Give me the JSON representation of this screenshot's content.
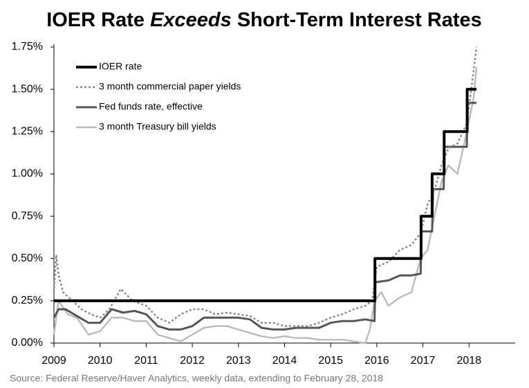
{
  "chart_data": {
    "type": "line",
    "title": [
      "IOER Rate ",
      "Exceeds",
      " Short-Term Interest Rates"
    ],
    "source": "Source: Federal Reserve/Haver Analytics, weekly data, extending to February 28, 2018",
    "xlim": [
      2009,
      2019
    ],
    "xticks": [
      2009,
      2010,
      2011,
      2012,
      2013,
      2014,
      2015,
      2016,
      2017,
      2018
    ],
    "ylim": [
      0,
      1.75
    ],
    "yticks": [
      {
        "value": 0,
        "label": "0.00%"
      },
      {
        "value": 0.25,
        "label": "0.25%"
      },
      {
        "value": 0.5,
        "label": "0.50%"
      },
      {
        "value": 0.75,
        "label": "0.75%"
      },
      {
        "value": 1.0,
        "label": "1.00%"
      },
      {
        "value": 1.25,
        "label": "1.25%"
      },
      {
        "value": 1.5,
        "label": "1.50%"
      },
      {
        "value": 1.75,
        "label": "1.75%"
      }
    ],
    "grid": false,
    "legend": "top-left",
    "series": [
      {
        "name": "IOER rate",
        "color": "#000000",
        "width": 4,
        "style": "solid",
        "x": [
          2009.0,
          2015.96,
          2015.96,
          2016.96,
          2016.96,
          2017.2,
          2017.2,
          2017.46,
          2017.46,
          2017.96,
          2017.96,
          2018.16
        ],
        "values": [
          0.25,
          0.25,
          0.5,
          0.5,
          0.75,
          0.75,
          1.0,
          1.0,
          1.25,
          1.25,
          1.5,
          1.5
        ]
      },
      {
        "name": "3 month commercial paper yields",
        "color": "#888888",
        "width": 2.5,
        "style": "dotted",
        "x": [
          2009.0,
          2009.05,
          2009.1,
          2009.2,
          2009.4,
          2009.6,
          2009.8,
          2010.0,
          2010.2,
          2010.45,
          2010.7,
          2011.0,
          2011.25,
          2011.5,
          2011.75,
          2012.0,
          2012.25,
          2012.5,
          2012.75,
          2013.0,
          2013.25,
          2013.5,
          2013.75,
          2014.0,
          2014.25,
          2014.5,
          2014.75,
          2015.0,
          2015.25,
          2015.5,
          2015.75,
          2015.9,
          2016.0,
          2016.25,
          2016.5,
          2016.75,
          2016.95,
          2017.1,
          2017.25,
          2017.4,
          2017.55,
          2017.75,
          2017.95,
          2018.05,
          2018.16
        ],
        "values": [
          0.3,
          0.52,
          0.4,
          0.3,
          0.25,
          0.2,
          0.17,
          0.15,
          0.2,
          0.32,
          0.25,
          0.22,
          0.15,
          0.12,
          0.17,
          0.2,
          0.2,
          0.17,
          0.18,
          0.17,
          0.16,
          0.12,
          0.12,
          0.1,
          0.1,
          0.1,
          0.12,
          0.15,
          0.17,
          0.2,
          0.22,
          0.25,
          0.45,
          0.48,
          0.55,
          0.58,
          0.65,
          0.82,
          0.9,
          1.05,
          1.15,
          1.18,
          1.3,
          1.5,
          1.75
        ]
      },
      {
        "name": "Fed funds rate, effective",
        "color": "#555555",
        "width": 3,
        "style": "solid",
        "x": [
          2009.0,
          2009.1,
          2009.25,
          2009.5,
          2009.75,
          2010.0,
          2010.25,
          2010.5,
          2010.75,
          2011.0,
          2011.25,
          2011.5,
          2011.75,
          2012.0,
          2012.25,
          2012.5,
          2012.75,
          2013.0,
          2013.25,
          2013.5,
          2013.75,
          2014.0,
          2014.25,
          2014.5,
          2014.75,
          2015.0,
          2015.25,
          2015.5,
          2015.75,
          2015.95,
          2015.97,
          2016.25,
          2016.5,
          2016.75,
          2016.95,
          2016.97,
          2017.2,
          2017.22,
          2017.45,
          2017.47,
          2017.95,
          2017.97,
          2018.16
        ],
        "values": [
          0.15,
          0.2,
          0.2,
          0.16,
          0.12,
          0.12,
          0.2,
          0.18,
          0.19,
          0.17,
          0.1,
          0.08,
          0.08,
          0.1,
          0.15,
          0.15,
          0.15,
          0.15,
          0.14,
          0.09,
          0.08,
          0.08,
          0.09,
          0.09,
          0.09,
          0.12,
          0.13,
          0.13,
          0.14,
          0.13,
          0.36,
          0.37,
          0.4,
          0.4,
          0.41,
          0.66,
          0.66,
          0.91,
          0.91,
          1.16,
          1.16,
          1.42,
          1.42
        ]
      },
      {
        "name": "3 month Treasury bill yields",
        "color": "#bbbbbb",
        "width": 2.5,
        "style": "solid",
        "x": [
          2009.0,
          2009.1,
          2009.3,
          2009.5,
          2009.75,
          2010.0,
          2010.25,
          2010.5,
          2010.75,
          2011.0,
          2011.25,
          2011.5,
          2011.75,
          2012.0,
          2012.25,
          2012.5,
          2012.75,
          2013.0,
          2013.25,
          2013.5,
          2013.75,
          2014.0,
          2014.25,
          2014.5,
          2014.75,
          2015.0,
          2015.25,
          2015.5,
          2015.75,
          2015.85,
          2015.95,
          2016.1,
          2016.25,
          2016.5,
          2016.75,
          2016.95,
          2017.1,
          2017.25,
          2017.4,
          2017.55,
          2017.75,
          2017.95,
          2018.1,
          2018.16
        ],
        "values": [
          0.05,
          0.25,
          0.17,
          0.15,
          0.05,
          0.07,
          0.15,
          0.15,
          0.13,
          0.13,
          0.05,
          0.03,
          0.01,
          0.05,
          0.09,
          0.1,
          0.1,
          0.08,
          0.06,
          0.04,
          0.03,
          0.04,
          0.03,
          0.03,
          0.02,
          0.02,
          0.02,
          0.01,
          0.0,
          0.08,
          0.25,
          0.3,
          0.22,
          0.27,
          0.3,
          0.5,
          0.55,
          0.75,
          0.95,
          1.05,
          1.0,
          1.25,
          1.45,
          1.63
        ]
      }
    ]
  }
}
